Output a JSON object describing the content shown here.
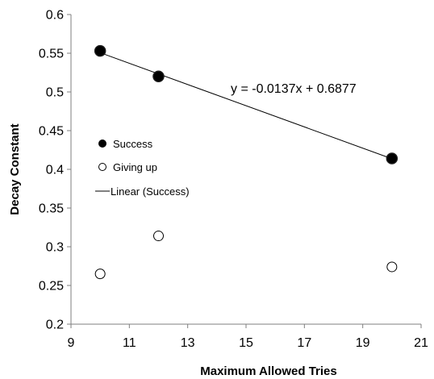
{
  "chart_data": {
    "type": "scatter",
    "title": "",
    "xlabel": "Maximum Allowed Tries",
    "ylabel": "Decay Constant",
    "xlim": [
      9,
      21
    ],
    "ylim": [
      0.2,
      0.6
    ],
    "xticks": [
      9,
      11,
      13,
      15,
      17,
      19,
      21
    ],
    "yticks": [
      0.2,
      0.25,
      0.3,
      0.35,
      0.4,
      0.45,
      0.5,
      0.55,
      0.6
    ],
    "xtick_labels": [
      "9",
      "11",
      "13",
      "15",
      "17",
      "19",
      "21"
    ],
    "ytick_labels": [
      "0.2",
      "0.25",
      "0.3",
      "0.35",
      "0.4",
      "0.45",
      "0.5",
      "0.55",
      "0.6"
    ],
    "grid": false,
    "legend_position": "left",
    "series": [
      {
        "name": "Success",
        "marker": "filled-circle",
        "color": "#000000",
        "x": [
          10,
          12,
          20
        ],
        "y": [
          0.553,
          0.52,
          0.414
        ]
      },
      {
        "name": "Giving up",
        "marker": "open-circle",
        "color": "#000000",
        "x": [
          10,
          12,
          20
        ],
        "y": [
          0.265,
          0.314,
          0.274
        ]
      }
    ],
    "trendline": {
      "name": "Linear (Success)",
      "slope": -0.0137,
      "intercept": 0.6877,
      "x_range": [
        10,
        20
      ],
      "equation": "y = -0.0137x + 0.6877"
    },
    "legend": [
      "Success",
      "Giving up",
      "Linear (Success)"
    ]
  }
}
